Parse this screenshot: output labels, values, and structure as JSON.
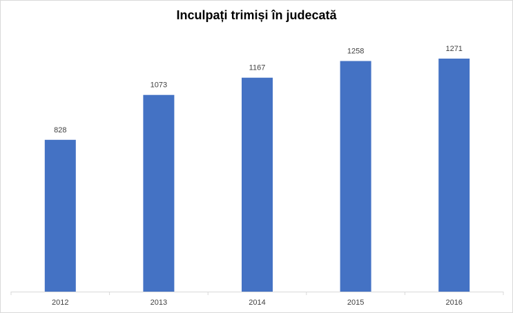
{
  "chart_data": {
    "type": "bar",
    "title": "Inculpați trimiși în judecată",
    "xlabel": "",
    "ylabel": "",
    "categories": [
      "2012",
      "2013",
      "2014",
      "2015",
      "2016"
    ],
    "values": [
      828,
      1073,
      1167,
      1258,
      1271
    ],
    "ylim": [
      0,
      1271
    ],
    "grid": false,
    "legend": "none",
    "bar_color": "#4472C4",
    "axis_color": "#d9d9d9",
    "label_color": "#404040"
  }
}
